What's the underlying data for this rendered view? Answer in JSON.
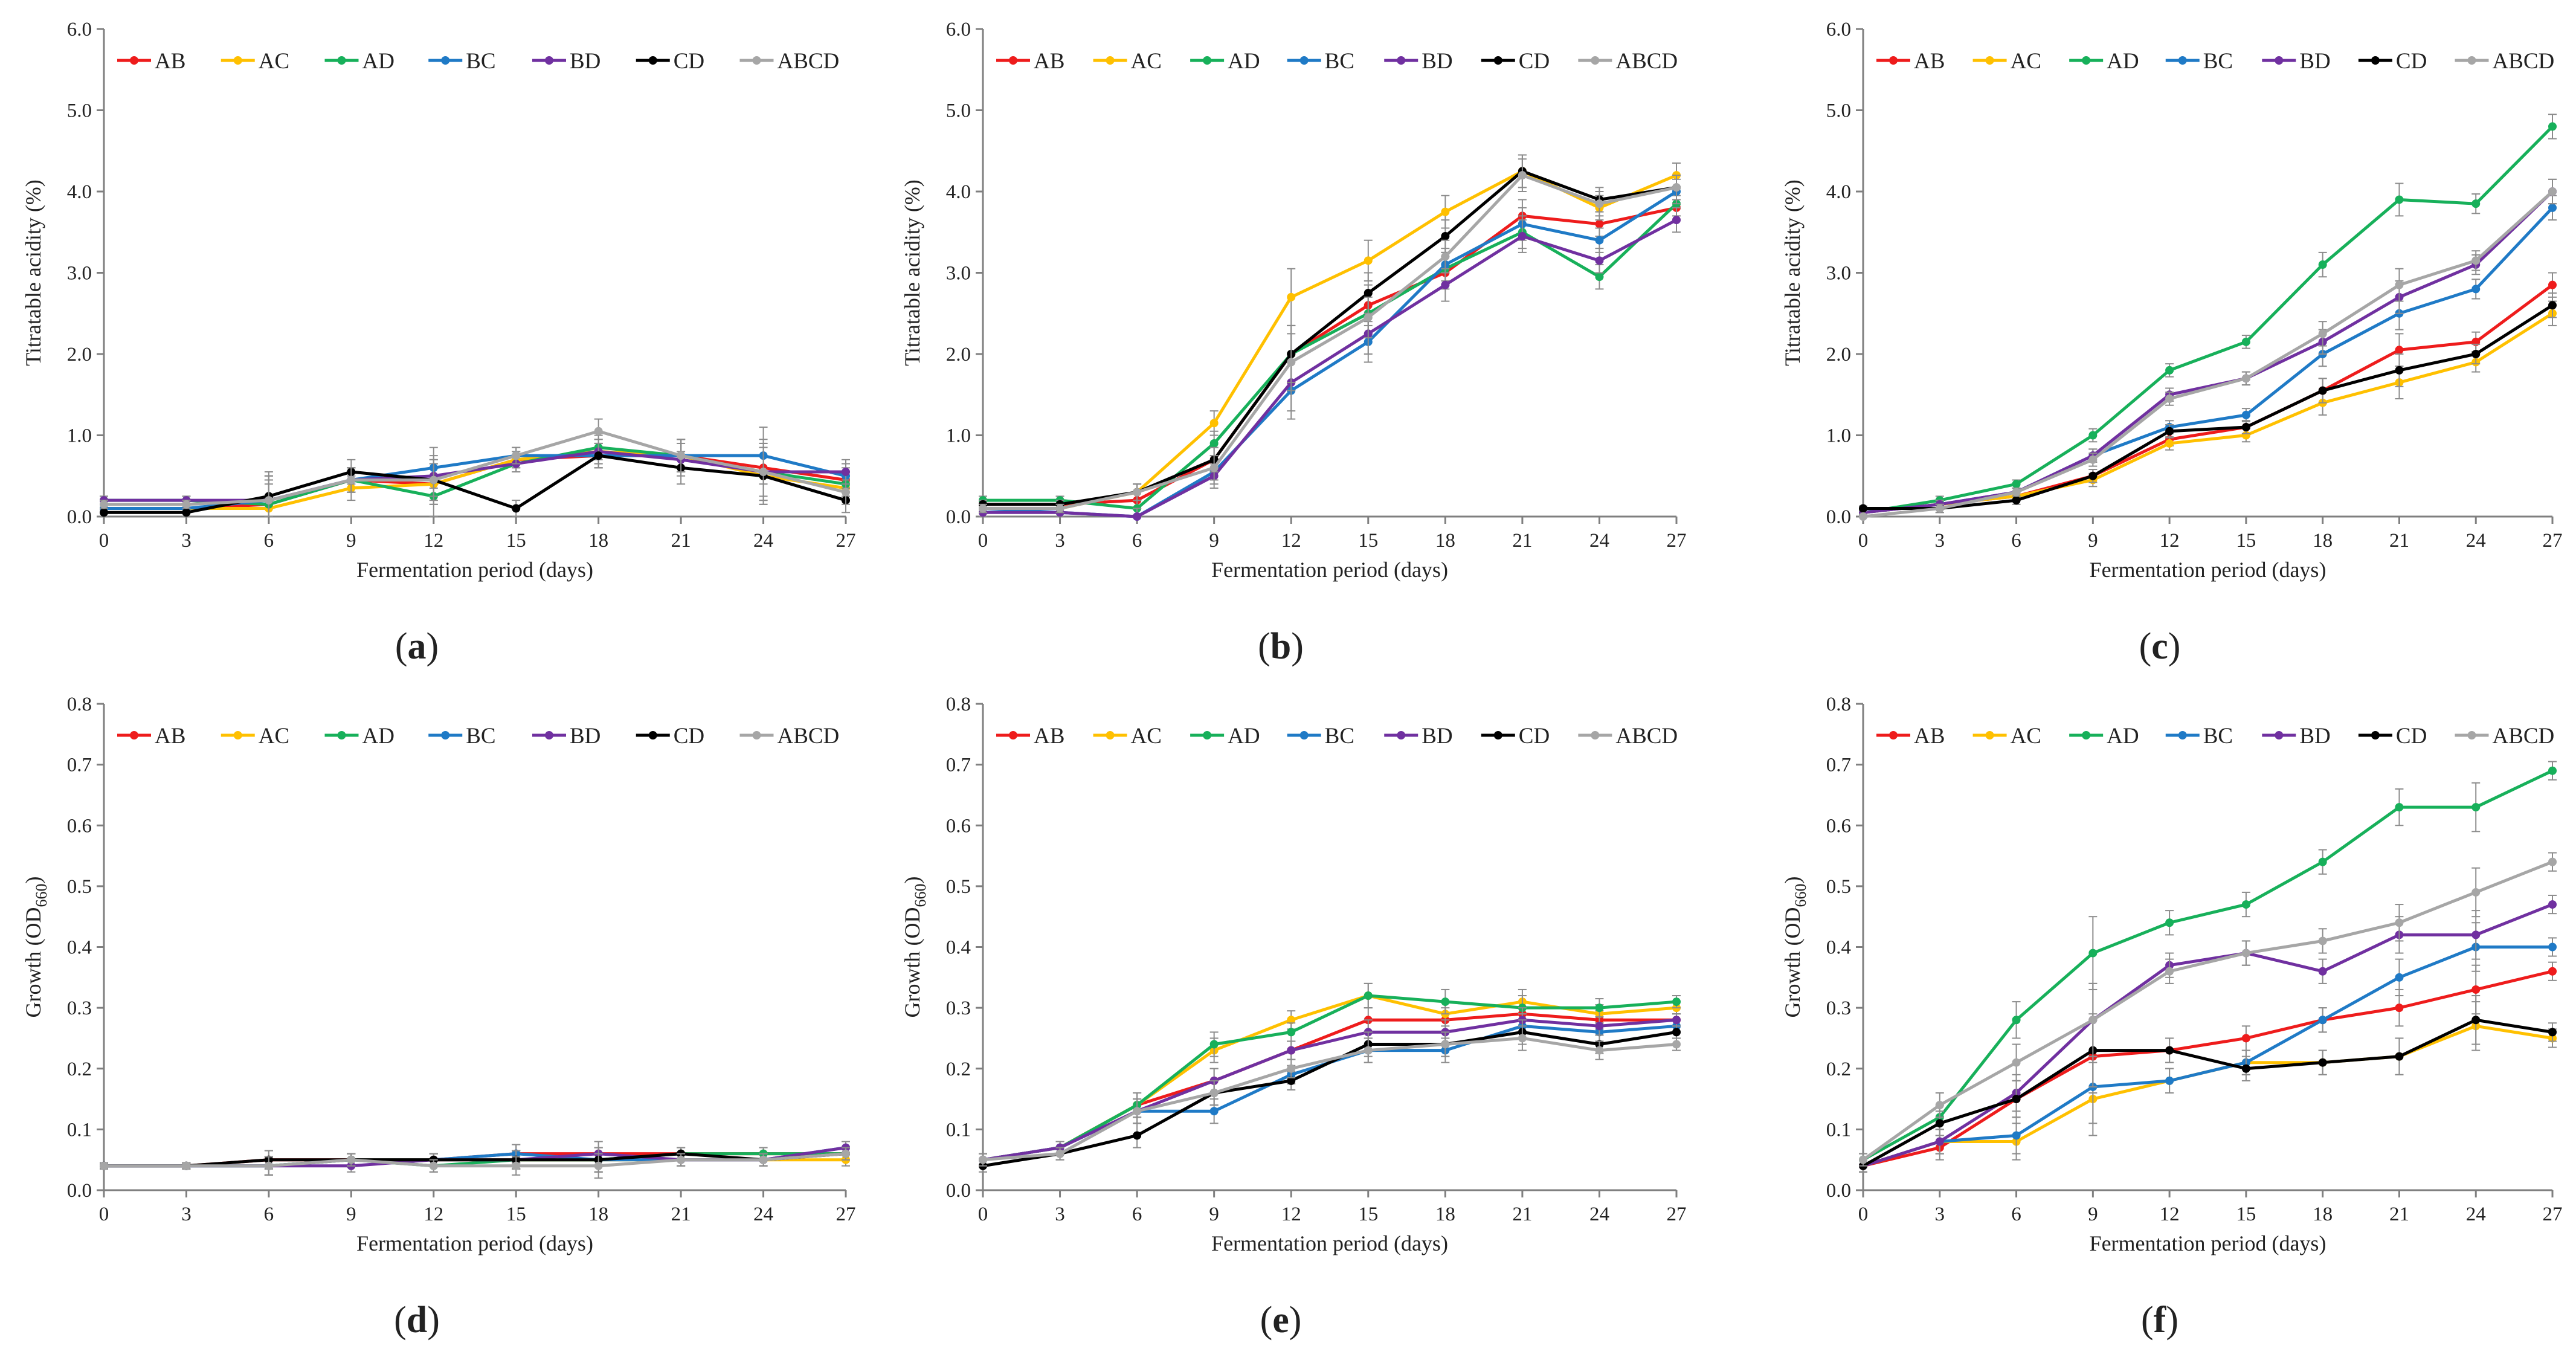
{
  "colors": {
    "AB": "#ee1c1c",
    "AC": "#ffc000",
    "AD": "#17b05a",
    "BC": "#1f7ac6",
    "BD": "#7030a0",
    "CD": "#000000",
    "ABCD": "#a6a6a6",
    "axis": "#7f7f7f",
    "errorbar": "#8c8c8c"
  },
  "chart_data": [
    {
      "type": "line",
      "panel": "(a)",
      "panel_open": "(",
      "panel_letter": "a",
      "panel_close": ")",
      "xlabel": "Fermentation period (days)",
      "ylabel": "Titratable acidity (%)",
      "ylabel_sub": "",
      "ylim": [
        0,
        6
      ],
      "ytick_step": 1,
      "ytick_decimals": 1,
      "x": [
        0,
        3,
        6,
        9,
        12,
        15,
        18,
        21,
        24,
        27
      ],
      "legend": "top",
      "series": [
        {
          "name": "AB",
          "values": [
            0.1,
            0.1,
            0.15,
            0.45,
            0.4,
            0.7,
            0.75,
            0.75,
            0.6,
            0.45
          ]
        },
        {
          "name": "AC",
          "values": [
            0.1,
            0.1,
            0.1,
            0.35,
            0.4,
            0.7,
            0.8,
            0.75,
            0.5,
            0.35
          ]
        },
        {
          "name": "AD",
          "values": [
            0.2,
            0.2,
            0.15,
            0.45,
            0.25,
            0.65,
            0.85,
            0.75,
            0.55,
            0.4
          ]
        },
        {
          "name": "BC",
          "values": [
            0.1,
            0.1,
            0.2,
            0.45,
            0.6,
            0.75,
            0.75,
            0.75,
            0.75,
            0.5
          ]
        },
        {
          "name": "BD",
          "values": [
            0.2,
            0.2,
            0.2,
            0.45,
            0.5,
            0.65,
            0.8,
            0.7,
            0.55,
            0.55
          ]
        },
        {
          "name": "CD",
          "values": [
            0.05,
            0.05,
            0.25,
            0.55,
            0.45,
            0.1,
            0.75,
            0.6,
            0.5,
            0.2
          ]
        },
        {
          "name": "ABCD",
          "values": [
            0.15,
            0.15,
            0.2,
            0.45,
            0.45,
            0.75,
            1.05,
            0.75,
            0.55,
            0.3
          ]
        }
      ],
      "errors": [
        0.05,
        0.05,
        0.3,
        0.15,
        0.25,
        0.1,
        0.15,
        0.2,
        0.35,
        0.15
      ]
    },
    {
      "type": "line",
      "panel": "(b)",
      "panel_open": "(",
      "panel_letter": "b",
      "panel_close": ")",
      "xlabel": "Fermentation period (days)",
      "ylabel": "Titratable acidity (%)",
      "ylabel_sub": "",
      "ylim": [
        0,
        6
      ],
      "ytick_step": 1,
      "ytick_decimals": 1,
      "x": [
        0,
        3,
        6,
        9,
        12,
        15,
        18,
        21,
        24,
        27
      ],
      "legend": "top",
      "series": [
        {
          "name": "AB",
          "values": [
            0.15,
            0.15,
            0.2,
            0.7,
            2.0,
            2.6,
            3.0,
            3.7,
            3.6,
            3.8
          ]
        },
        {
          "name": "AC",
          "values": [
            0.1,
            0.1,
            0.3,
            1.15,
            2.7,
            3.15,
            3.75,
            4.25,
            3.8,
            4.2
          ]
        },
        {
          "name": "AD",
          "values": [
            0.2,
            0.2,
            0.1,
            0.9,
            2.0,
            2.5,
            3.05,
            3.5,
            2.95,
            3.85
          ]
        },
        {
          "name": "BC",
          "values": [
            0.1,
            0.05,
            0.0,
            0.55,
            1.55,
            2.15,
            3.1,
            3.6,
            3.4,
            4.0
          ]
        },
        {
          "name": "BD",
          "values": [
            0.05,
            0.05,
            0.0,
            0.5,
            1.65,
            2.25,
            2.85,
            3.45,
            3.15,
            3.65
          ]
        },
        {
          "name": "CD",
          "values": [
            0.15,
            0.15,
            0.3,
            0.7,
            2.0,
            2.75,
            3.45,
            4.25,
            3.9,
            4.05
          ]
        },
        {
          "name": "ABCD",
          "values": [
            0.1,
            0.1,
            0.3,
            0.6,
            1.9,
            2.45,
            3.2,
            4.2,
            3.85,
            4.05
          ]
        }
      ],
      "errors": [
        0.05,
        0.05,
        0.1,
        0.15,
        0.35,
        0.25,
        0.2,
        0.2,
        0.15,
        0.15
      ]
    },
    {
      "type": "line",
      "panel": "(c)",
      "panel_open": "(",
      "panel_letter": "c",
      "panel_close": ")",
      "xlabel": "Fermentation period (days)",
      "ylabel": "Titratable acidity (%)",
      "ylabel_sub": "",
      "ylim": [
        0,
        6
      ],
      "ytick_step": 1,
      "ytick_decimals": 1,
      "x": [
        0,
        3,
        6,
        9,
        12,
        15,
        18,
        21,
        24,
        27
      ],
      "legend": "top",
      "series": [
        {
          "name": "AB",
          "values": [
            0.05,
            0.15,
            0.25,
            0.5,
            0.95,
            1.1,
            1.55,
            2.05,
            2.15,
            2.85
          ]
        },
        {
          "name": "AC",
          "values": [
            0.05,
            0.15,
            0.25,
            0.45,
            0.9,
            1.0,
            1.4,
            1.65,
            1.9,
            2.5
          ]
        },
        {
          "name": "AD",
          "values": [
            0.05,
            0.2,
            0.4,
            1.0,
            1.8,
            2.15,
            3.1,
            3.9,
            3.85,
            4.8
          ]
        },
        {
          "name": "BC",
          "values": [
            0.05,
            0.15,
            0.3,
            0.75,
            1.1,
            1.25,
            2.0,
            2.5,
            2.8,
            3.8
          ]
        },
        {
          "name": "BD",
          "values": [
            0.05,
            0.15,
            0.3,
            0.75,
            1.5,
            1.7,
            2.15,
            2.7,
            3.1,
            4.0
          ]
        },
        {
          "name": "CD",
          "values": [
            0.1,
            0.1,
            0.2,
            0.5,
            1.05,
            1.1,
            1.55,
            1.8,
            2.0,
            2.6
          ]
        },
        {
          "name": "ABCD",
          "values": [
            0.0,
            0.1,
            0.3,
            0.7,
            1.45,
            1.7,
            2.25,
            2.85,
            3.15,
            4.0
          ]
        }
      ],
      "errors": [
        0.03,
        0.05,
        0.05,
        0.08,
        0.08,
        0.08,
        0.15,
        0.2,
        0.12,
        0.15
      ]
    },
    {
      "type": "line",
      "panel": "(d)",
      "panel_open": "(",
      "panel_letter": "d",
      "panel_close": ")",
      "xlabel": "Fermentation period (days)",
      "ylabel": "Growth (OD",
      "ylabel_sub": "660",
      "ylabel_close": ")",
      "ylim": [
        0,
        0.8
      ],
      "ytick_step": 0.1,
      "ytick_decimals": 1,
      "x": [
        0,
        3,
        6,
        9,
        12,
        15,
        18,
        21,
        24,
        27
      ],
      "legend": "top",
      "series": [
        {
          "name": "AB",
          "values": [
            0.04,
            0.04,
            0.05,
            0.05,
            0.05,
            0.06,
            0.06,
            0.06,
            0.06,
            0.06
          ]
        },
        {
          "name": "AC",
          "values": [
            0.04,
            0.04,
            0.04,
            0.05,
            0.05,
            0.05,
            0.05,
            0.05,
            0.05,
            0.05
          ]
        },
        {
          "name": "AD",
          "values": [
            0.04,
            0.04,
            0.04,
            0.05,
            0.04,
            0.05,
            0.05,
            0.06,
            0.06,
            0.06
          ]
        },
        {
          "name": "BC",
          "values": [
            0.04,
            0.04,
            0.04,
            0.05,
            0.05,
            0.06,
            0.05,
            0.05,
            0.05,
            0.07
          ]
        },
        {
          "name": "BD",
          "values": [
            0.04,
            0.04,
            0.04,
            0.04,
            0.05,
            0.05,
            0.06,
            0.05,
            0.05,
            0.07
          ]
        },
        {
          "name": "CD",
          "values": [
            0.04,
            0.04,
            0.05,
            0.05,
            0.05,
            0.05,
            0.05,
            0.06,
            0.05,
            0.06
          ]
        },
        {
          "name": "ABCD",
          "values": [
            0.04,
            0.04,
            0.04,
            0.05,
            0.04,
            0.04,
            0.04,
            0.05,
            0.05,
            0.06
          ]
        }
      ],
      "errors": [
        0.005,
        0.005,
        0.015,
        0.01,
        0.01,
        0.015,
        0.02,
        0.01,
        0.01,
        0.01
      ]
    },
    {
      "type": "line",
      "panel": "(e)",
      "panel_open": "(",
      "panel_letter": "e",
      "panel_close": ")",
      "xlabel": "Fermentation period (days)",
      "ylabel": "Growth (OD",
      "ylabel_sub": "660",
      "ylabel_close": ")",
      "ylim": [
        0,
        0.8
      ],
      "ytick_step": 0.1,
      "ytick_decimals": 1,
      "x": [
        0,
        3,
        6,
        9,
        12,
        15,
        18,
        21,
        24,
        27
      ],
      "legend": "top",
      "series": [
        {
          "name": "AB",
          "values": [
            0.05,
            0.07,
            0.14,
            0.18,
            0.23,
            0.28,
            0.28,
            0.29,
            0.28,
            0.28
          ]
        },
        {
          "name": "AC",
          "values": [
            0.05,
            0.07,
            0.14,
            0.23,
            0.28,
            0.32,
            0.29,
            0.31,
            0.29,
            0.3
          ]
        },
        {
          "name": "AD",
          "values": [
            0.05,
            0.07,
            0.14,
            0.24,
            0.26,
            0.32,
            0.31,
            0.3,
            0.3,
            0.31
          ]
        },
        {
          "name": "BC",
          "values": [
            0.05,
            0.07,
            0.13,
            0.13,
            0.19,
            0.23,
            0.23,
            0.27,
            0.26,
            0.27
          ]
        },
        {
          "name": "BD",
          "values": [
            0.05,
            0.07,
            0.13,
            0.18,
            0.23,
            0.26,
            0.26,
            0.28,
            0.27,
            0.28
          ]
        },
        {
          "name": "CD",
          "values": [
            0.04,
            0.06,
            0.09,
            0.16,
            0.18,
            0.24,
            0.24,
            0.26,
            0.24,
            0.26
          ]
        },
        {
          "name": "ABCD",
          "values": [
            0.05,
            0.06,
            0.13,
            0.16,
            0.2,
            0.23,
            0.24,
            0.25,
            0.23,
            0.24
          ]
        }
      ],
      "errors": [
        0.01,
        0.01,
        0.02,
        0.02,
        0.015,
        0.02,
        0.02,
        0.02,
        0.015,
        0.01
      ]
    },
    {
      "type": "line",
      "panel": "(f)",
      "panel_open": "(",
      "panel_letter": "f",
      "panel_close": ")",
      "xlabel": "Fermentation period (days)",
      "ylabel": "Growth (OD",
      "ylabel_sub": "660",
      "ylabel_close": ")",
      "ylim": [
        0,
        0.8
      ],
      "ytick_step": 0.1,
      "ytick_decimals": 1,
      "x": [
        0,
        3,
        6,
        9,
        12,
        15,
        18,
        21,
        24,
        27
      ],
      "legend": "top",
      "series": [
        {
          "name": "AB",
          "values": [
            0.04,
            0.07,
            0.15,
            0.22,
            0.23,
            0.25,
            0.28,
            0.3,
            0.33,
            0.36
          ]
        },
        {
          "name": "AC",
          "values": [
            0.04,
            0.08,
            0.08,
            0.15,
            0.18,
            0.21,
            0.21,
            0.22,
            0.27,
            0.25
          ]
        },
        {
          "name": "AD",
          "values": [
            0.05,
            0.12,
            0.28,
            0.39,
            0.44,
            0.47,
            0.54,
            0.63,
            0.63,
            0.69
          ]
        },
        {
          "name": "BC",
          "values": [
            0.04,
            0.08,
            0.09,
            0.17,
            0.18,
            0.21,
            0.28,
            0.35,
            0.4,
            0.4
          ]
        },
        {
          "name": "BD",
          "values": [
            0.04,
            0.08,
            0.16,
            0.28,
            0.37,
            0.39,
            0.36,
            0.42,
            0.42,
            0.47
          ]
        },
        {
          "name": "CD",
          "values": [
            0.04,
            0.11,
            0.15,
            0.23,
            0.23,
            0.2,
            0.21,
            0.22,
            0.28,
            0.26
          ]
        },
        {
          "name": "ABCD",
          "values": [
            0.05,
            0.14,
            0.21,
            0.28,
            0.36,
            0.39,
            0.41,
            0.44,
            0.49,
            0.54
          ]
        }
      ],
      "errors": [
        0.01,
        0.02,
        0.03,
        0.06,
        0.02,
        0.02,
        0.02,
        0.03,
        0.04,
        0.015
      ]
    }
  ]
}
